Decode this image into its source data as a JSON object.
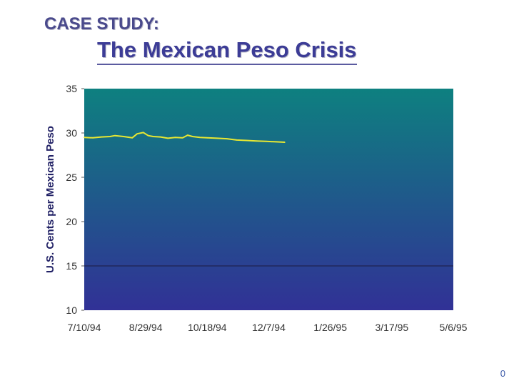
{
  "header": {
    "kicker": "CASE STUDY:",
    "title": "The Mexican Peso Crisis"
  },
  "page_number": "0",
  "chart_data": {
    "type": "line",
    "title": "",
    "xlabel": "",
    "ylabel": "U.S. Cents per Mexican Peso",
    "ylim": [
      10,
      35
    ],
    "yticks": [
      "35",
      "30",
      "25",
      "20",
      "15",
      "10"
    ],
    "xlim": [
      "1994-07-10",
      "1995-05-06"
    ],
    "xticks": [
      "7/10/94",
      "8/29/94",
      "10/18/94",
      "12/7/94",
      "1/26/95",
      "3/17/95",
      "5/6/95"
    ],
    "grid": false,
    "background_gradient": [
      "#0e8080",
      "#313196"
    ],
    "line_color": "#e8e832",
    "reference_line": 15,
    "series": [
      {
        "x": [
          "1994-07-10",
          "1994-07-17",
          "1994-07-24",
          "1994-07-31",
          "1994-08-04",
          "1994-08-11",
          "1994-08-18",
          "1994-08-22",
          "1994-08-27",
          "1994-08-31",
          "1994-09-04",
          "1994-09-10",
          "1994-09-16",
          "1994-09-22",
          "1994-09-28",
          "1994-10-02",
          "1994-10-06",
          "1994-10-12",
          "1994-10-18",
          "1994-10-26",
          "1994-11-03",
          "1994-11-11",
          "1994-11-19",
          "1994-11-27",
          "1994-12-05",
          "1994-12-13",
          "1994-12-20"
        ],
        "values": [
          29.5,
          29.45,
          29.55,
          29.6,
          29.7,
          29.6,
          29.45,
          29.9,
          30.05,
          29.7,
          29.6,
          29.55,
          29.4,
          29.5,
          29.45,
          29.75,
          29.6,
          29.5,
          29.45,
          29.4,
          29.35,
          29.2,
          29.15,
          29.1,
          29.05,
          29.0,
          28.95
        ]
      }
    ]
  }
}
